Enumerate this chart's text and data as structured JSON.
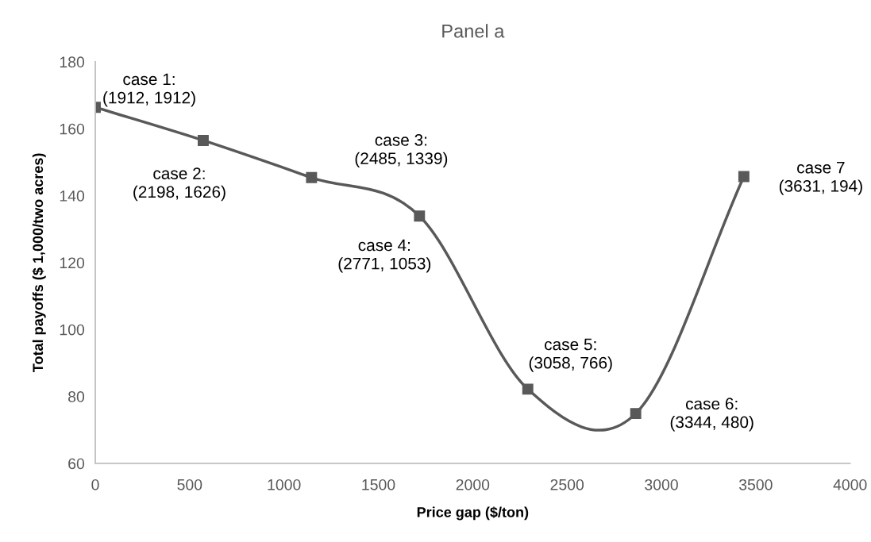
{
  "chart_data": {
    "type": "line",
    "title": "Panel a",
    "xlabel": "Price gap ($/ton)",
    "ylabel": "Total payoffs ($ 1,000/two acres)",
    "x": [
      0,
      572,
      1146,
      1718,
      2292,
      2864,
      3437
    ],
    "series": [
      {
        "color": "#595959",
        "values": [
          166.4,
          156.5,
          145.4,
          133.9,
          82.2,
          74.9,
          145.7
        ]
      }
    ],
    "xlim": [
      0,
      4000
    ],
    "xticks": [
      0,
      500,
      1000,
      1500,
      2000,
      2500,
      3000,
      3500,
      4000
    ],
    "ylim": [
      60,
      180
    ],
    "yticks": [
      60,
      80,
      100,
      120,
      140,
      160,
      180
    ],
    "grid": false,
    "marker": "square",
    "line_style": "solid",
    "annotations": [
      {
        "text": "case 1:\n(1912, 1912)",
        "x": 0,
        "y": 166.4
      },
      {
        "text": "case 2:\n(2198, 1626)",
        "x": 572,
        "y": 156.5
      },
      {
        "text": "case 3:\n(2485, 1339)",
        "x": 1146,
        "y": 145.4
      },
      {
        "text": "case 4:\n(2771, 1053)",
        "x": 1718,
        "y": 133.9
      },
      {
        "text": "case 5:\n(3058, 766)",
        "x": 2292,
        "y": 82.2
      },
      {
        "text": "case 6:\n(3344, 480)",
        "x": 2864,
        "y": 74.9
      },
      {
        "text": "case 7\n(3631, 194)",
        "x": 3437,
        "y": 145.7
      }
    ]
  }
}
